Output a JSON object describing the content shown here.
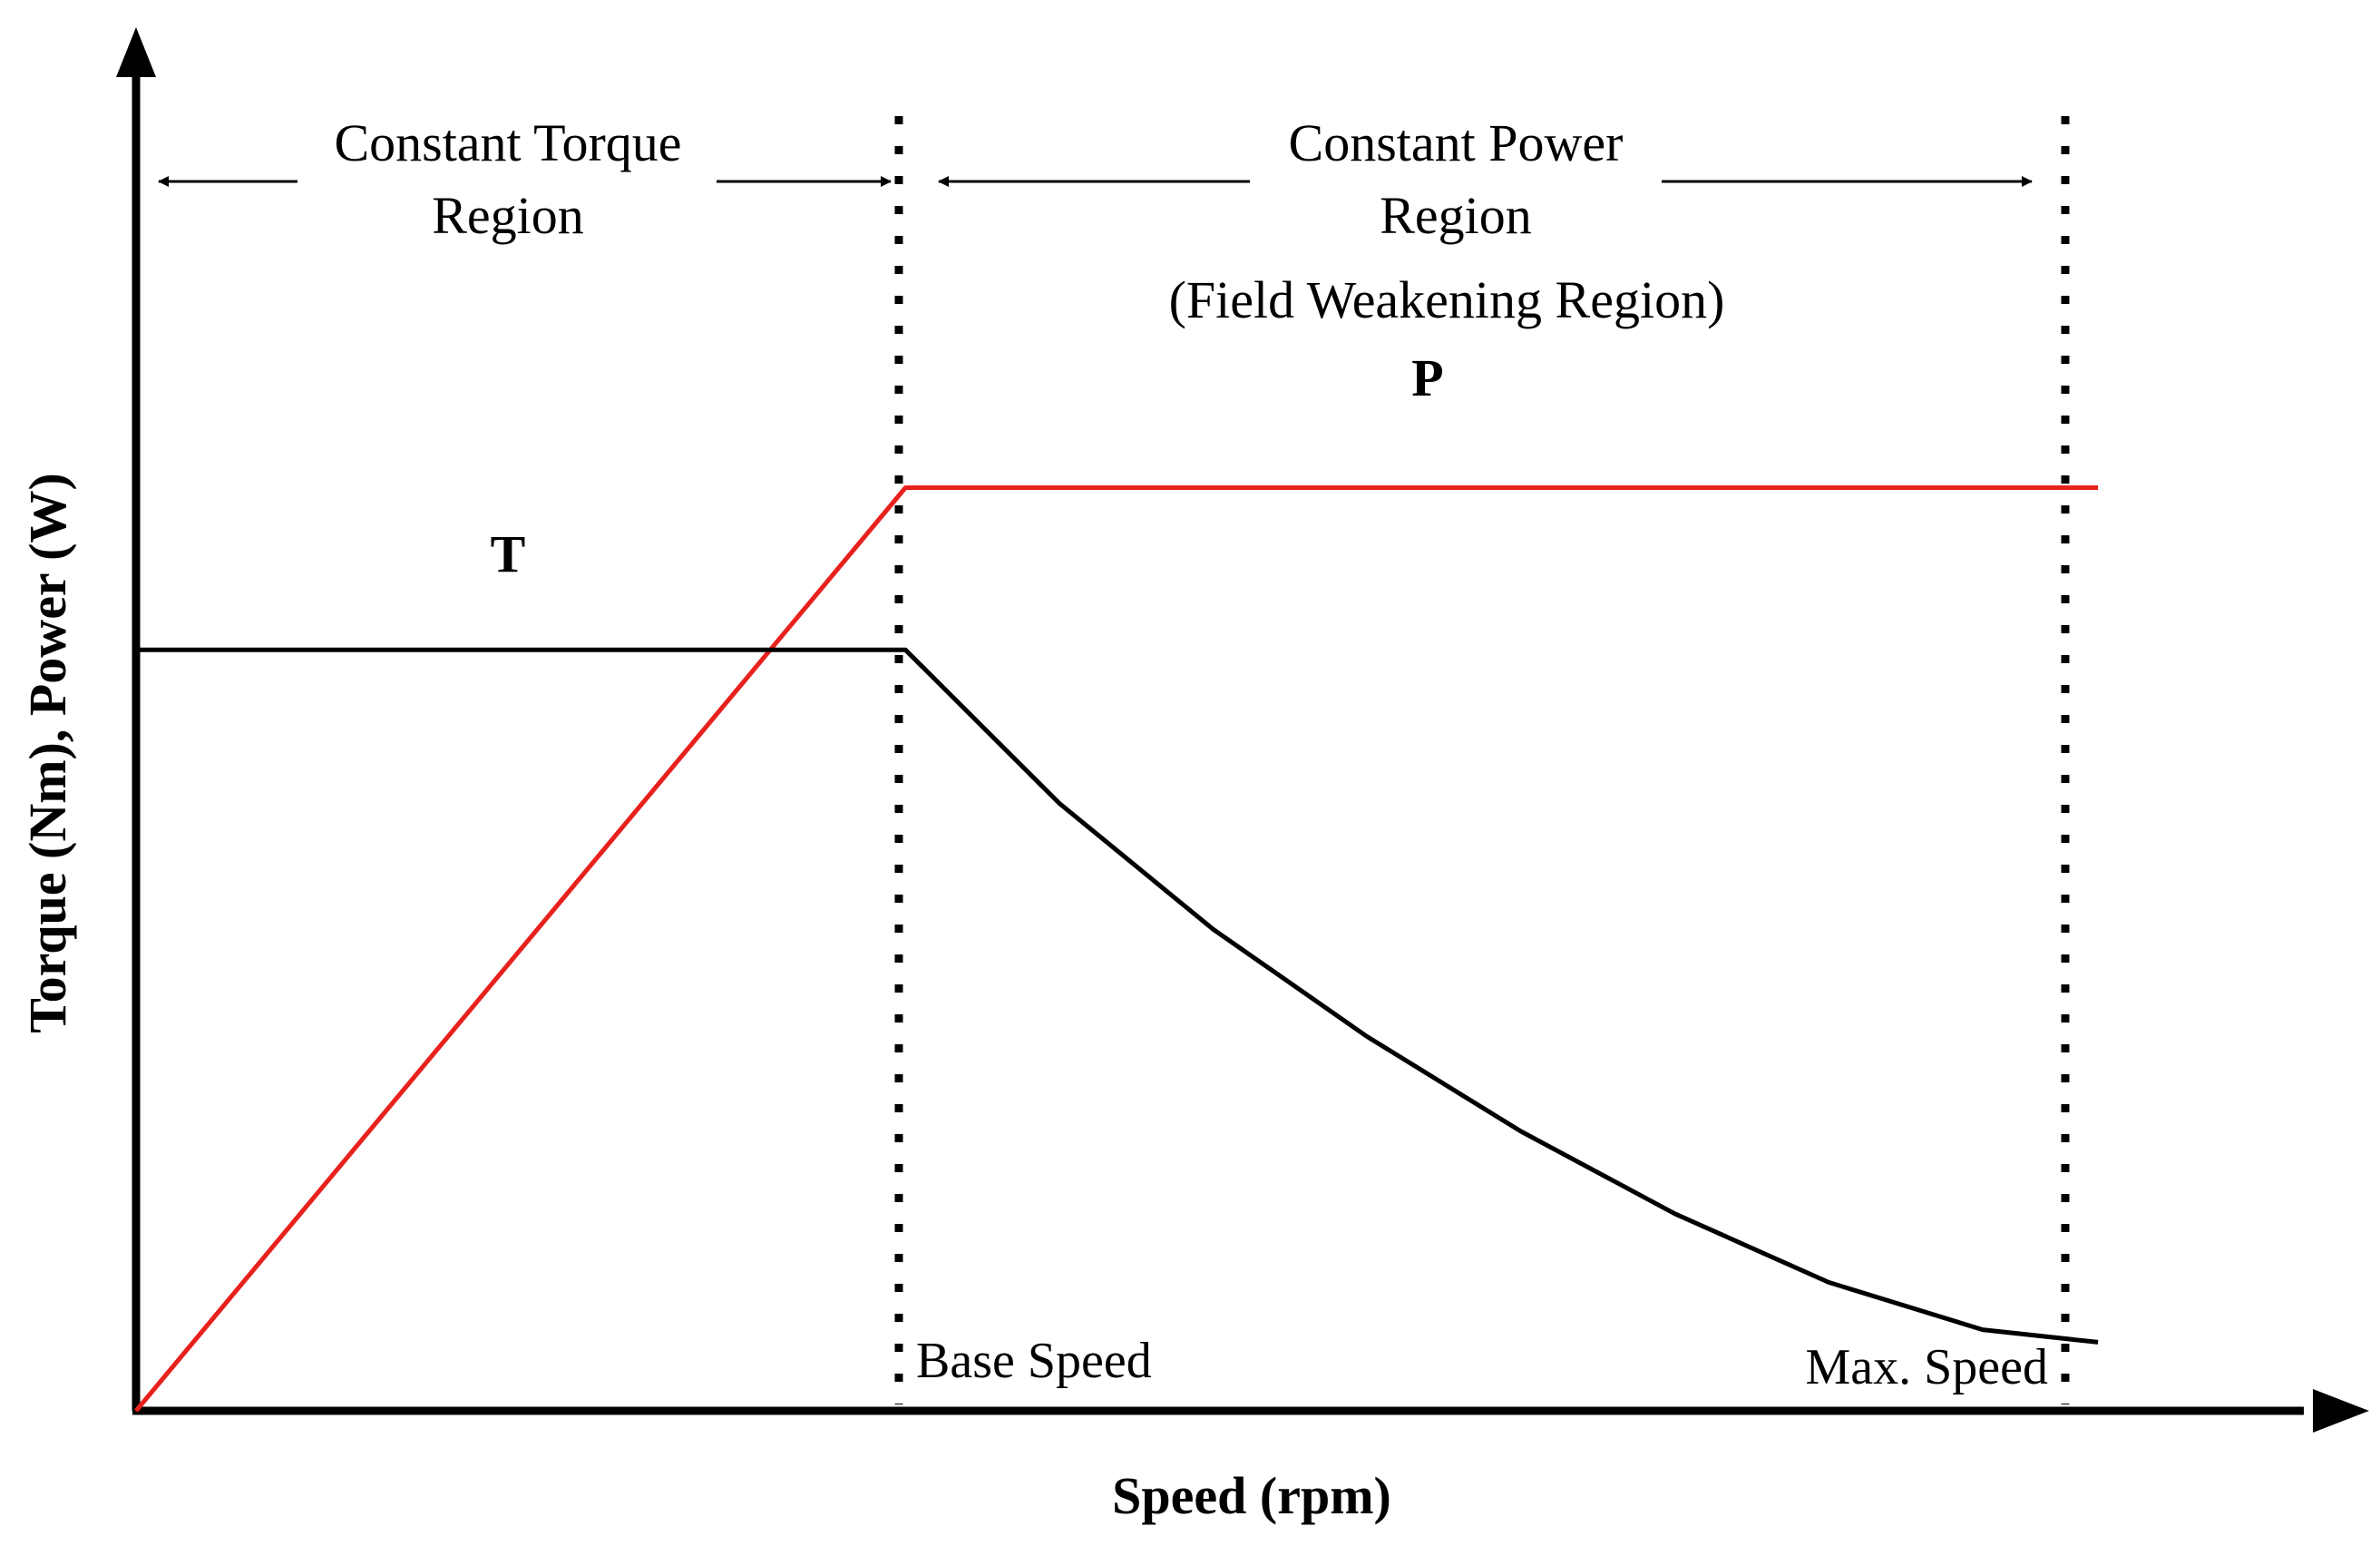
{
  "chart_data": {
    "type": "line",
    "xlabel": "Speed (rpm)",
    "ylabel": "Torque (Nm), Power (W)",
    "regions": {
      "constant_torque": {
        "line1": "Constant Torque",
        "line2": "Region"
      },
      "constant_power": {
        "line1": "Constant Power",
        "line2": "Region",
        "line3": "(Field Weakening Region)"
      }
    },
    "markers": {
      "base_speed": "Base Speed",
      "max_speed": "Max. Speed"
    },
    "series": [
      {
        "name": "T",
        "color": "#000000",
        "x": [
          0,
          1,
          1.2,
          1.4,
          1.6,
          1.8,
          2.0,
          2.2,
          2.4,
          2.55
        ],
        "y": [
          0.61,
          0.61,
          0.487,
          0.386,
          0.3,
          0.224,
          0.158,
          0.103,
          0.065,
          0.055
        ]
      },
      {
        "name": "P",
        "color": "#e8211c",
        "x": [
          0,
          1,
          2.55
        ],
        "y": [
          0,
          0.74,
          0.74
        ]
      }
    ],
    "xlim": [
      0,
      2.9
    ],
    "ylim": [
      0,
      1.0
    ]
  }
}
